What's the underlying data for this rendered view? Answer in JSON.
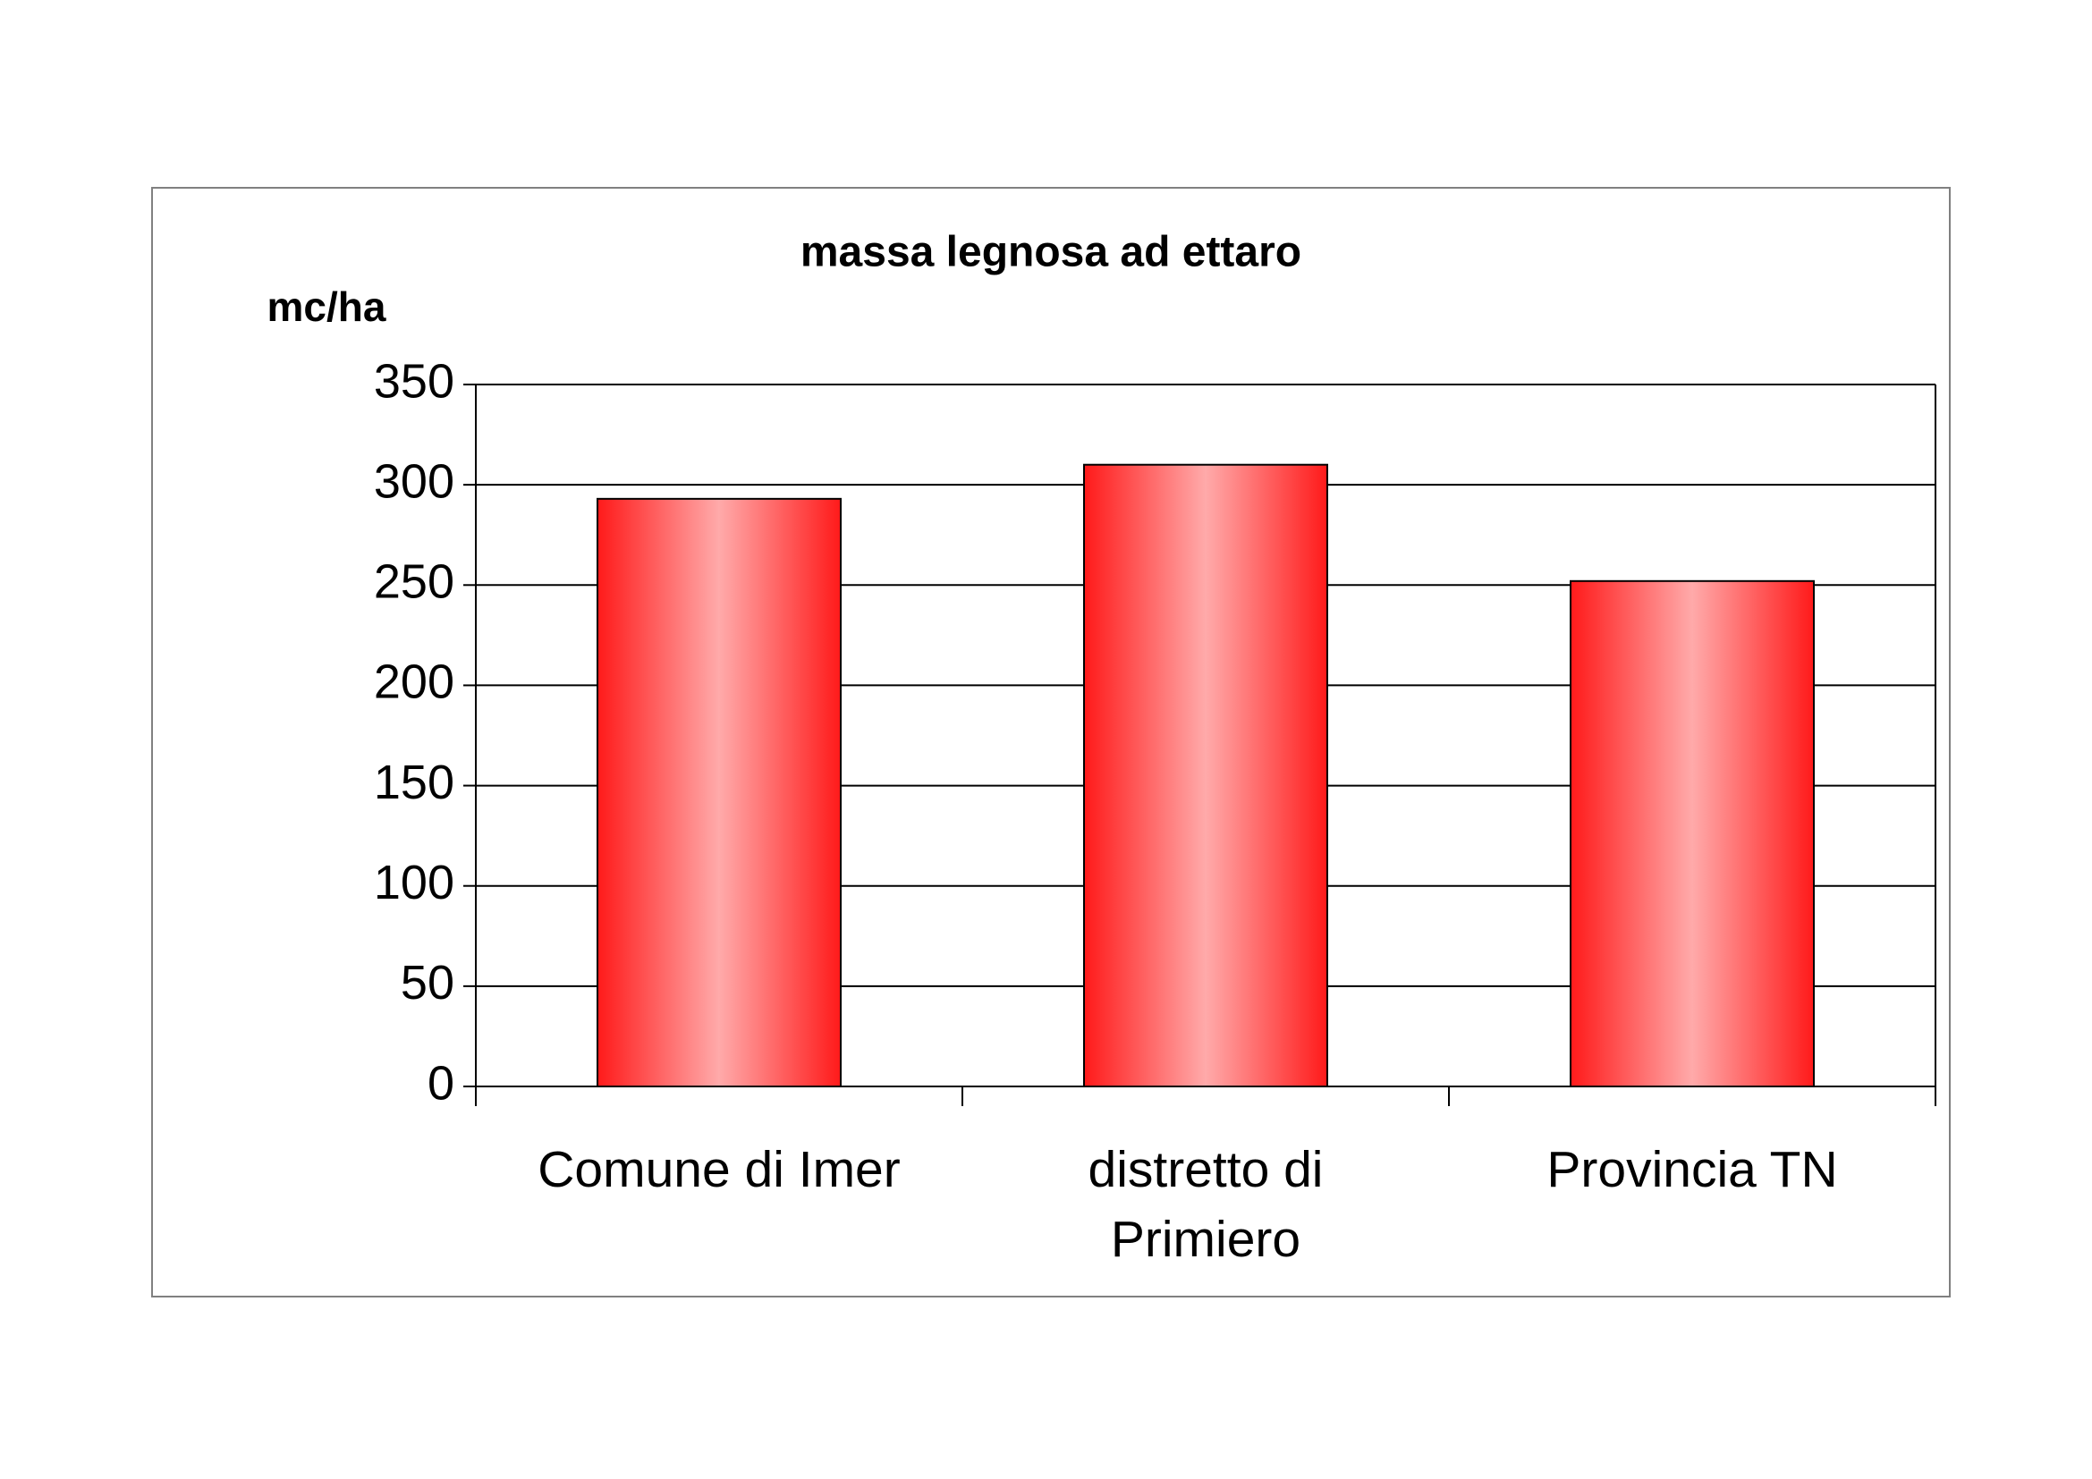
{
  "chart_data": {
    "type": "bar",
    "title": "massa legnosa ad ettaro",
    "y_label": "mc/ha",
    "categories": [
      "Comune di Imer",
      "distretto di Primiero",
      "Provincia TN"
    ],
    "values": [
      293,
      310,
      252
    ],
    "color": "#ff1a1a",
    "highlight": "#ffaaaa",
    "ylim": [
      0,
      350
    ],
    "yticks": [
      0,
      50,
      100,
      150,
      200,
      250,
      300,
      350
    ],
    "grid": true
  }
}
